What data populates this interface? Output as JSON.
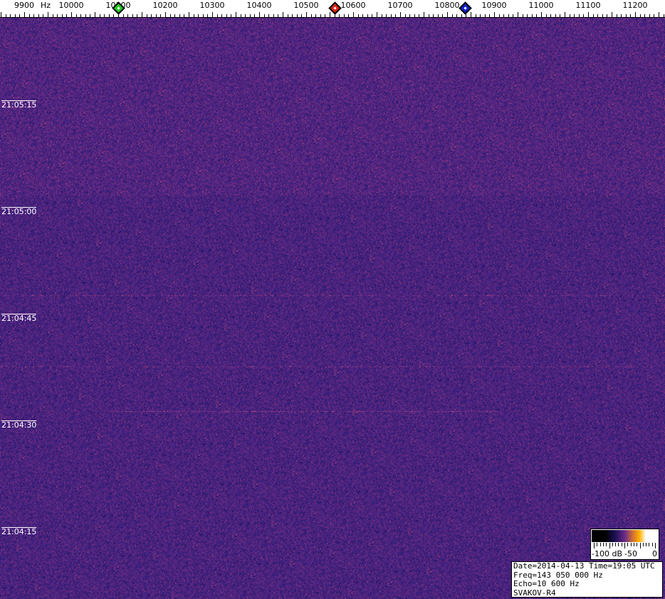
{
  "frequency_axis": {
    "unit_label": "Hz",
    "labels": [
      "9900",
      "10000",
      "10100",
      "10200",
      "10300",
      "10400",
      "10500",
      "10600",
      "10700",
      "10800",
      "10900",
      "11000",
      "11100",
      "11200"
    ]
  },
  "markers": [
    {
      "color": "#22cc22",
      "freq_hz": 10100
    },
    {
      "color": "#dd2211",
      "freq_hz": 10560
    },
    {
      "color": "#1122cc",
      "freq_hz": 10838
    }
  ],
  "time_labels": [
    "21:05:15",
    "21:05:00",
    "21:04:45",
    "21:04:30",
    "21:04:15"
  ],
  "legend": {
    "min_label": "-100 dB",
    "mid_label": "-50",
    "max_label": "0"
  },
  "info": {
    "line1": "Date=2014-04-13 Time=19:05 UTC",
    "line2": "Freq=143 050 000 Hz",
    "line3": "Echo=10 600 Hz",
    "line4": "SVAKOV-R4"
  },
  "colors": {
    "background": "#3a1f78",
    "noise_high": "#c05080"
  }
}
